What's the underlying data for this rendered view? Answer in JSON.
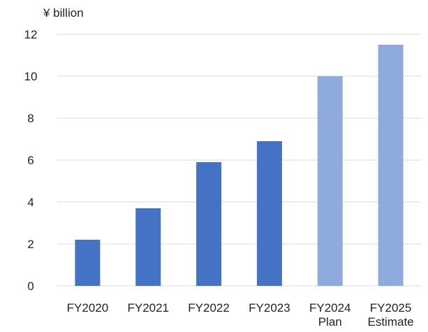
{
  "chart_data": {
    "type": "bar",
    "unit_label": "¥ billion",
    "categories": [
      [
        "FY2020"
      ],
      [
        "FY2021"
      ],
      [
        "FY2022"
      ],
      [
        "FY2023"
      ],
      [
        "FY2024",
        "Plan"
      ],
      [
        "FY2025",
        "Estimate"
      ]
    ],
    "values": [
      2.2,
      3.7,
      5.9,
      6.9,
      10.0,
      11.5
    ],
    "bar_colors": [
      "#4472C4",
      "#4472C4",
      "#4472C4",
      "#4472C4",
      "#8FAADC",
      "#8FAADC"
    ],
    "ylim": [
      0,
      12
    ],
    "yticks": [
      0,
      2,
      4,
      6,
      8,
      10,
      12
    ],
    "grid": true,
    "gridline_color": "#d9d9d9",
    "legend": "none"
  }
}
